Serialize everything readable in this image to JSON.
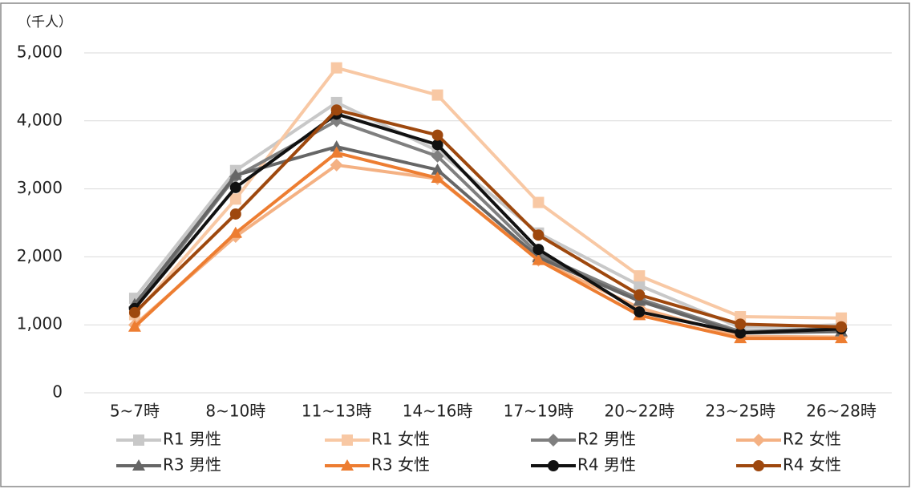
{
  "chart_data": {
    "type": "line",
    "y_unit": "（千人）",
    "categories": [
      "5~7時",
      "8~10時",
      "11~13時",
      "14~16時",
      "17~19時",
      "20~22時",
      "23~25時",
      "26~28時"
    ],
    "series": [
      {
        "name": "R1 男性",
        "color": "#c8c8c8",
        "marker": "square",
        "values": [
          1390,
          3270,
          4270,
          3560,
          2350,
          1580,
          960,
          1000
        ]
      },
      {
        "name": "R1 女性",
        "color": "#f8c8a4",
        "marker": "square",
        "values": [
          1150,
          2850,
          4780,
          4380,
          2800,
          1720,
          1120,
          1100
        ]
      },
      {
        "name": "R2 男性",
        "color": "#7f7f7f",
        "marker": "diamond",
        "values": [
          1260,
          3180,
          4000,
          3480,
          2040,
          1380,
          900,
          950
        ]
      },
      {
        "name": "R2 女性",
        "color": "#f4b183",
        "marker": "diamond",
        "values": [
          1000,
          2300,
          3350,
          3150,
          1950,
          1250,
          830,
          820
        ]
      },
      {
        "name": "R3 男性",
        "color": "#666666",
        "marker": "triangle",
        "values": [
          1300,
          3200,
          3620,
          3280,
          1990,
          1350,
          880,
          900
        ]
      },
      {
        "name": "R3 女性",
        "color": "#ed7d31",
        "marker": "triangle",
        "values": [
          970,
          2350,
          3530,
          3160,
          1950,
          1140,
          800,
          800
        ]
      },
      {
        "name": "R4 男性",
        "color": "#111111",
        "marker": "circle",
        "values": [
          1240,
          3020,
          4100,
          3650,
          2110,
          1190,
          880,
          940
        ]
      },
      {
        "name": "R4 女性",
        "color": "#9e480e",
        "marker": "circle",
        "values": [
          1180,
          2630,
          4160,
          3790,
          2320,
          1440,
          1010,
          970
        ]
      }
    ],
    "ylim": [
      0,
      5000
    ],
    "yticks": [
      0,
      {
        "value": 1000,
        "label": "1,000"
      },
      {
        "value": 2000,
        "label": "2,000"
      },
      {
        "value": 3000,
        "label": "3,000"
      },
      {
        "value": 4000,
        "label": "4,000"
      },
      {
        "value": 5000,
        "label": "5,000"
      }
    ],
    "grid": true
  }
}
